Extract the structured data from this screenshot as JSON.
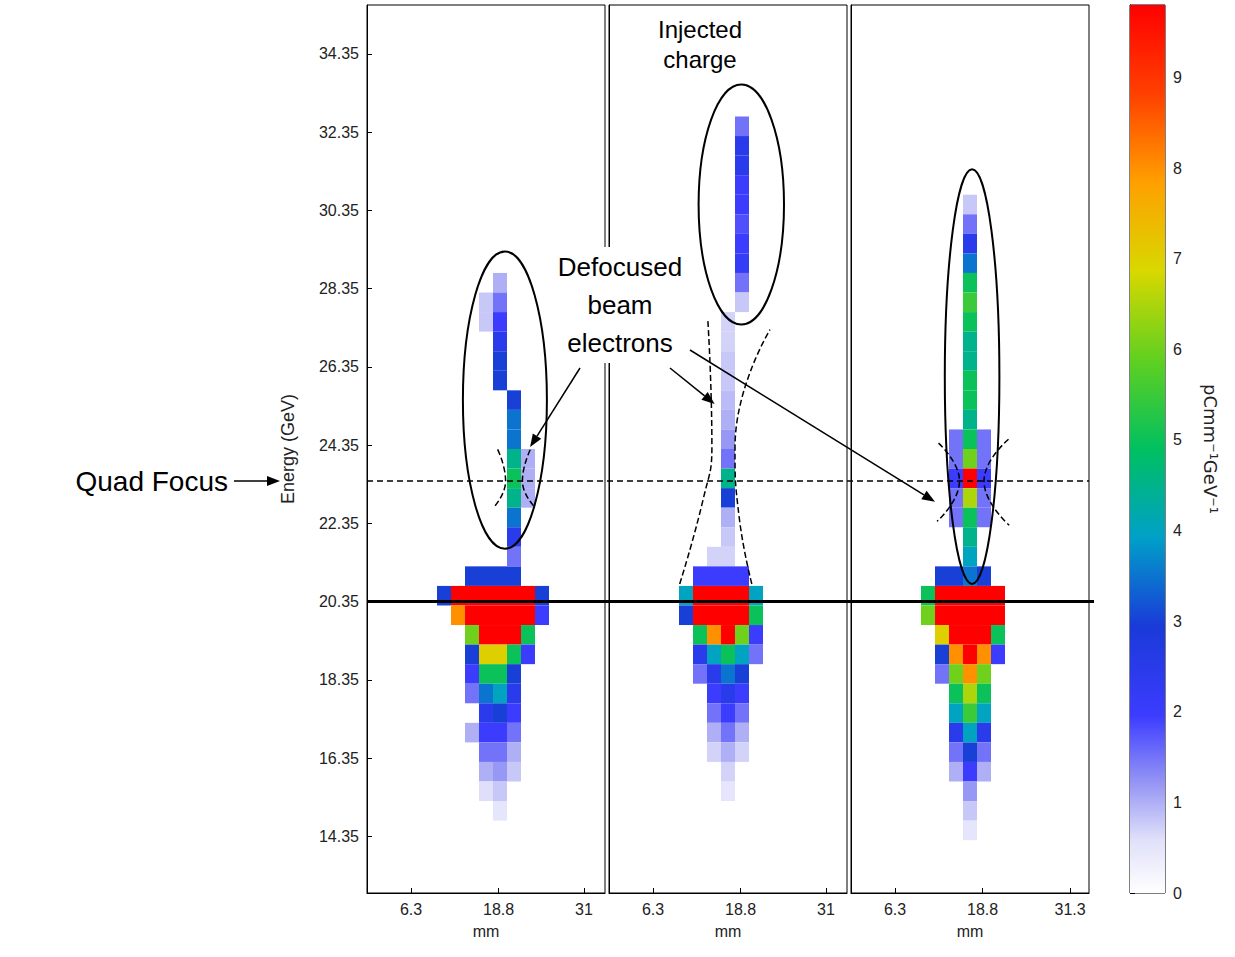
{
  "chart_data": {
    "type": "heatmap",
    "y_label": "Energy (GeV)",
    "x_label": "mm",
    "ylim": [
      12.9,
      35.6
    ],
    "yticks": [
      14.35,
      16.35,
      18.35,
      20.35,
      22.35,
      24.35,
      26.35,
      28.35,
      30.35,
      32.35,
      34.35
    ],
    "bin_width_mm": 2,
    "bin_height_gev": 0.5,
    "colorbar": {
      "label": "pCmm⁻¹GeV⁻¹",
      "range": [
        0,
        9.8
      ],
      "ticks": [
        0,
        1,
        2,
        3,
        4,
        5,
        6,
        7,
        8,
        9
      ]
    },
    "annotations": {
      "quad_focus": {
        "label": "Quad Focus",
        "energy": 23.43
      },
      "beam_energy": 20.35,
      "injected_label": "Injected charge",
      "defocused_label": "Defocused beam electrons"
    },
    "panels": [
      {
        "xlim": [
          0,
          34
        ],
        "xticks": [
          6.3,
          18.8,
          31
        ],
        "highlight": {
          "x": 19.7,
          "energy": 25.5,
          "x_radius": 6.0,
          "energy_radius": 3.8
        },
        "defocus_arrow_target": [
          23.3,
          24.3
        ],
        "defocus_lines": [
          [
            [
              18.3,
              22.8
            ],
            [
              19.8,
              23.43
            ],
            [
              18.5,
              24.3
            ]
          ],
          [
            [
              23.8,
              22.8
            ],
            [
              22.2,
              23.43
            ],
            [
              23.5,
              24.3
            ]
          ]
        ],
        "cells": [
          [
            15,
            21,
            3
          ],
          [
            17,
            21,
            3
          ],
          [
            19,
            21,
            3
          ],
          [
            21,
            21,
            3
          ],
          [
            11,
            20.5,
            3
          ],
          [
            13,
            20.5,
            9.8
          ],
          [
            15,
            20.5,
            9.8
          ],
          [
            17,
            20.5,
            9.8
          ],
          [
            19,
            20.5,
            9.8
          ],
          [
            21,
            20.5,
            9.8
          ],
          [
            23,
            20.5,
            9.8
          ],
          [
            25,
            20.5,
            3
          ],
          [
            13,
            20,
            8
          ],
          [
            15,
            20,
            9.8
          ],
          [
            17,
            20,
            9.8
          ],
          [
            19,
            20,
            9.8
          ],
          [
            21,
            20,
            9.8
          ],
          [
            23,
            20,
            9.8
          ],
          [
            25,
            20,
            2
          ],
          [
            15,
            19.5,
            6
          ],
          [
            17,
            19.5,
            9.8
          ],
          [
            19,
            19.5,
            9.8
          ],
          [
            21,
            19.5,
            9.8
          ],
          [
            23,
            19.5,
            5
          ],
          [
            15,
            19,
            3
          ],
          [
            17,
            19,
            7
          ],
          [
            19,
            19,
            7
          ],
          [
            21,
            19,
            5
          ],
          [
            23,
            19,
            2
          ],
          [
            15,
            18.5,
            2
          ],
          [
            17,
            18.5,
            5
          ],
          [
            19,
            18.5,
            5
          ],
          [
            21,
            18.5,
            3
          ],
          [
            15,
            18,
            1.5
          ],
          [
            17,
            18,
            3.5
          ],
          [
            19,
            18,
            4
          ],
          [
            21,
            18,
            2.5
          ],
          [
            17,
            17.5,
            2.5
          ],
          [
            19,
            17.5,
            3
          ],
          [
            21,
            17.5,
            2
          ],
          [
            15,
            17,
            1
          ],
          [
            17,
            17,
            2
          ],
          [
            19,
            17,
            2
          ],
          [
            21,
            17,
            1.5
          ],
          [
            17,
            16.5,
            1.5
          ],
          [
            19,
            16.5,
            1.5
          ],
          [
            21,
            16.5,
            1
          ],
          [
            17,
            16,
            1
          ],
          [
            19,
            16,
            1.2
          ],
          [
            21,
            16,
            0.8
          ],
          [
            17,
            15.5,
            0.6
          ],
          [
            19,
            15.5,
            0.8
          ],
          [
            19,
            15,
            0.5
          ],
          [
            19,
            28.5,
            1
          ],
          [
            19,
            28,
            1.5
          ],
          [
            17,
            28,
            0.8
          ],
          [
            19,
            27.5,
            2
          ],
          [
            17,
            27.5,
            0.8
          ],
          [
            19,
            27,
            2.5
          ],
          [
            19,
            26.5,
            3
          ],
          [
            19,
            26,
            3
          ],
          [
            21,
            25.5,
            3
          ],
          [
            21,
            25,
            3.5
          ],
          [
            21,
            24.5,
            3.5
          ],
          [
            21,
            24,
            4.5
          ],
          [
            23,
            24,
            1
          ],
          [
            21,
            23.5,
            5
          ],
          [
            23,
            23.5,
            1
          ],
          [
            21,
            23,
            4.5
          ],
          [
            23,
            23,
            1
          ],
          [
            21,
            22.5,
            3.5
          ],
          [
            21,
            22,
            2.5
          ],
          [
            21,
            21.5,
            1.5
          ]
        ]
      },
      {
        "xlim": [
          0,
          34
        ],
        "xticks": [
          6.3,
          18.8,
          31
        ],
        "tick_labels": "x",
        "highlight": {
          "x": 18.9,
          "energy": 30.5,
          "x_radius": 6.1,
          "energy_radius": 3.07
        },
        "defocus_arrow_target": [
          15.1,
          25.4
        ],
        "defocus_lines": [
          [
            [
              10.1,
              20.8
            ],
            [
              13.5,
              23.0
            ],
            [
              14.7,
              24.3
            ],
            [
              14.1,
              27.6
            ]
          ],
          [
            [
              20.4,
              20.8
            ],
            [
              18.6,
              22.5
            ],
            [
              18.0,
              24.3
            ],
            [
              23.0,
              27.3
            ]
          ]
        ],
        "cells": [
          [
            19,
            32.5,
            1.5
          ],
          [
            19,
            32,
            2.5
          ],
          [
            19,
            31.5,
            2.5
          ],
          [
            19,
            31,
            2
          ],
          [
            19,
            30.5,
            2
          ],
          [
            19,
            30,
            1.8
          ],
          [
            19,
            29.5,
            2
          ],
          [
            19,
            29,
            2.2
          ],
          [
            19,
            28.5,
            1.5
          ],
          [
            19,
            28,
            0.8
          ],
          [
            17,
            27.5,
            0.7
          ],
          [
            17,
            27,
            0.7
          ],
          [
            17,
            26.5,
            0.8
          ],
          [
            17,
            26,
            0.8
          ],
          [
            17,
            25.5,
            0.9
          ],
          [
            17,
            25,
            1
          ],
          [
            17,
            24.5,
            1.2
          ],
          [
            17,
            24,
            1.5
          ],
          [
            17,
            23.5,
            4.5
          ],
          [
            17,
            23,
            3
          ],
          [
            17,
            22.5,
            1
          ],
          [
            17,
            22,
            0.8
          ],
          [
            15,
            21.5,
            0.7
          ],
          [
            17,
            21.5,
            0.7
          ],
          [
            13,
            21,
            2
          ],
          [
            15,
            21,
            2
          ],
          [
            17,
            21,
            2
          ],
          [
            19,
            21,
            2
          ],
          [
            11,
            20.5,
            4
          ],
          [
            13,
            20.5,
            9.8
          ],
          [
            15,
            20.5,
            9.8
          ],
          [
            17,
            20.5,
            9.8
          ],
          [
            19,
            20.5,
            9.8
          ],
          [
            21,
            20.5,
            4
          ],
          [
            11,
            20,
            3
          ],
          [
            13,
            20,
            9.8
          ],
          [
            15,
            20,
            9.8
          ],
          [
            17,
            20,
            9.8
          ],
          [
            19,
            20,
            9.8
          ],
          [
            21,
            20,
            5
          ],
          [
            13,
            19.5,
            5
          ],
          [
            15,
            19.5,
            8
          ],
          [
            17,
            19.5,
            9.8
          ],
          [
            19,
            19.5,
            6
          ],
          [
            21,
            19.5,
            2
          ],
          [
            13,
            19,
            2.5
          ],
          [
            15,
            19,
            4
          ],
          [
            17,
            19,
            5
          ],
          [
            19,
            19,
            4
          ],
          [
            21,
            19,
            1.5
          ],
          [
            13,
            18.5,
            1.5
          ],
          [
            15,
            18.5,
            2.5
          ],
          [
            17,
            18.5,
            3.5
          ],
          [
            19,
            18.5,
            3
          ],
          [
            15,
            18,
            2
          ],
          [
            17,
            18,
            2.5
          ],
          [
            19,
            18,
            2
          ],
          [
            15,
            17.5,
            1.5
          ],
          [
            17,
            17.5,
            2
          ],
          [
            19,
            17.5,
            1.5
          ],
          [
            15,
            17,
            1
          ],
          [
            17,
            17,
            1.5
          ],
          [
            19,
            17,
            1
          ],
          [
            15,
            16.5,
            0.7
          ],
          [
            17,
            16.5,
            1
          ],
          [
            19,
            16.5,
            0.7
          ],
          [
            17,
            16,
            0.7
          ],
          [
            17,
            15.5,
            0.5
          ]
        ]
      },
      {
        "xlim": [
          0,
          34
        ],
        "xticks": [
          6.3,
          18.8,
          31.3
        ],
        "tick_labels": "x",
        "highlight": {
          "x": 17.3,
          "energy": 26.1,
          "x_radius": 3.9,
          "energy_radius": 5.3
        },
        "defocus_arrow_target": [
          12.0,
          22.9
        ],
        "defocus_lines": [
          [
            [
              12.5,
              24.4
            ],
            [
              15.5,
              23.43
            ],
            [
              12.3,
              22.4
            ]
          ],
          [
            [
              22.5,
              24.5
            ],
            [
              19.0,
              23.43
            ],
            [
              22.6,
              22.3
            ]
          ]
        ],
        "cells": [
          [
            17,
            30.5,
            0.8
          ],
          [
            17,
            30,
            1.5
          ],
          [
            17,
            29.5,
            2.5
          ],
          [
            17,
            29,
            3.5
          ],
          [
            17,
            28.5,
            5
          ],
          [
            17,
            28,
            5.5
          ],
          [
            17,
            27.5,
            5
          ],
          [
            17,
            27,
            4.5
          ],
          [
            17,
            26.5,
            4.5
          ],
          [
            17,
            26,
            5
          ],
          [
            17,
            25.5,
            5
          ],
          [
            17,
            25,
            4.5
          ],
          [
            17,
            24.5,
            5
          ],
          [
            15,
            24.5,
            1.5
          ],
          [
            19,
            24.5,
            1.5
          ],
          [
            17,
            24,
            6
          ],
          [
            15,
            24,
            1.5
          ],
          [
            19,
            24,
            1.5
          ],
          [
            17,
            23.5,
            9.8
          ],
          [
            15,
            23.5,
            2
          ],
          [
            19,
            23.5,
            2
          ],
          [
            17,
            23,
            6.5
          ],
          [
            15,
            23,
            1.5
          ],
          [
            19,
            23,
            1.5
          ],
          [
            17,
            22.5,
            5
          ],
          [
            15,
            22.5,
            1.5
          ],
          [
            19,
            22.5,
            1.5
          ],
          [
            17,
            22,
            4.5
          ],
          [
            17,
            21.5,
            4
          ],
          [
            13,
            21,
            3
          ],
          [
            15,
            21,
            3
          ],
          [
            17,
            21,
            3.5
          ],
          [
            19,
            21,
            3
          ],
          [
            11,
            20.5,
            5
          ],
          [
            13,
            20.5,
            9.8
          ],
          [
            15,
            20.5,
            9.8
          ],
          [
            17,
            20.5,
            9.8
          ],
          [
            19,
            20.5,
            9.8
          ],
          [
            21,
            20.5,
            9.8
          ],
          [
            11,
            20,
            6
          ],
          [
            13,
            20,
            9.8
          ],
          [
            15,
            20,
            9.8
          ],
          [
            17,
            20,
            9.8
          ],
          [
            19,
            20,
            9.8
          ],
          [
            21,
            20,
            9.8
          ],
          [
            13,
            19.5,
            7
          ],
          [
            15,
            19.5,
            9.8
          ],
          [
            17,
            19.5,
            9.8
          ],
          [
            19,
            19.5,
            9.8
          ],
          [
            21,
            19.5,
            5
          ],
          [
            13,
            19,
            3
          ],
          [
            15,
            19,
            8
          ],
          [
            17,
            19,
            9.8
          ],
          [
            19,
            19,
            8
          ],
          [
            21,
            19,
            2
          ],
          [
            13,
            18.5,
            1.5
          ],
          [
            15,
            18.5,
            6
          ],
          [
            17,
            18.5,
            8
          ],
          [
            19,
            18.5,
            6
          ],
          [
            15,
            18,
            5
          ],
          [
            17,
            18,
            6.5
          ],
          [
            19,
            18,
            5
          ],
          [
            15,
            17.5,
            4
          ],
          [
            17,
            17.5,
            5.5
          ],
          [
            19,
            17.5,
            4
          ],
          [
            15,
            17,
            2.5
          ],
          [
            17,
            17,
            4
          ],
          [
            19,
            17,
            2.5
          ],
          [
            15,
            16.5,
            1.5
          ],
          [
            17,
            16.5,
            3
          ],
          [
            19,
            16.5,
            1.5
          ],
          [
            15,
            16,
            1
          ],
          [
            17,
            16,
            2
          ],
          [
            19,
            16,
            1
          ],
          [
            17,
            15.5,
            1.2
          ],
          [
            17,
            15,
            0.8
          ],
          [
            17,
            14.5,
            0.5
          ]
        ]
      }
    ]
  }
}
